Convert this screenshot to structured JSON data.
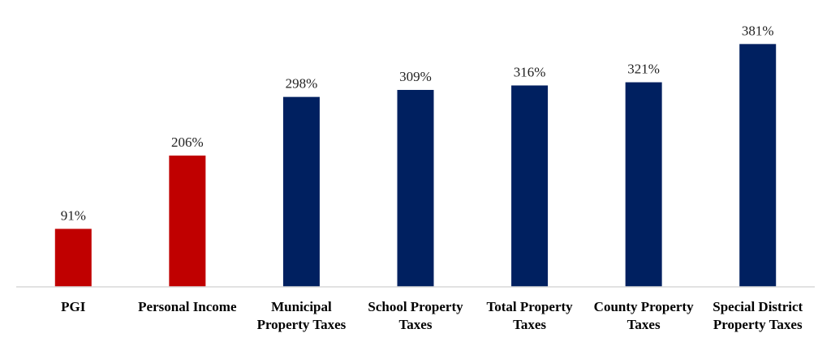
{
  "chart_data": {
    "type": "bar",
    "categories": [
      [
        "PGI"
      ],
      [
        "Personal Income"
      ],
      [
        "Municipal",
        "Property Taxes"
      ],
      [
        "School Property",
        "Taxes"
      ],
      [
        "Total Property",
        "Taxes"
      ],
      [
        "County Property",
        "Taxes"
      ],
      [
        "Special District",
        "Property Taxes"
      ]
    ],
    "values": [
      91,
      206,
      298,
      309,
      316,
      321,
      381
    ],
    "value_labels": [
      "91%",
      "206%",
      "298%",
      "309%",
      "316%",
      "321%",
      "381%"
    ],
    "bar_colors": [
      "#c00000",
      "#c00000",
      "#002060",
      "#002060",
      "#002060",
      "#002060",
      "#002060"
    ],
    "ylim": [
      0,
      390
    ],
    "grid": false,
    "legend": "none",
    "title": "",
    "xlabel": "",
    "ylabel": ""
  }
}
